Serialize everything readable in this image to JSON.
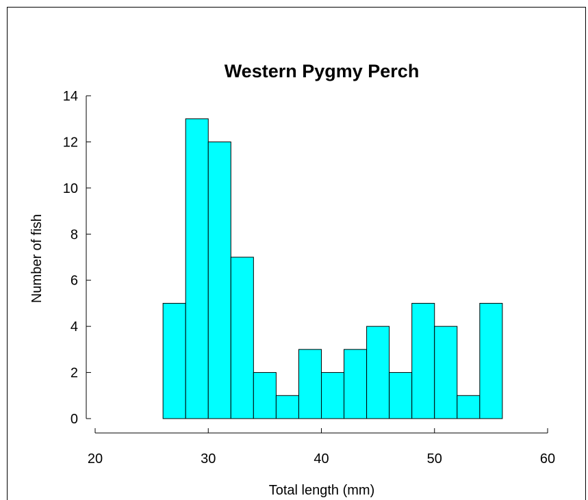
{
  "chart_data": {
    "type": "bar",
    "title": "Western Pygmy Perch",
    "xlabel": "Total length (mm)",
    "ylabel": "Number of fish",
    "xlim": [
      20,
      60
    ],
    "ylim": [
      0,
      14
    ],
    "xticks": [
      20,
      30,
      40,
      50,
      60
    ],
    "yticks": [
      0,
      2,
      4,
      6,
      8,
      10,
      12,
      14
    ],
    "bin_width": 2,
    "bins": [
      {
        "start": 26,
        "end": 28,
        "value": 5
      },
      {
        "start": 28,
        "end": 30,
        "value": 13
      },
      {
        "start": 30,
        "end": 32,
        "value": 12
      },
      {
        "start": 32,
        "end": 34,
        "value": 7
      },
      {
        "start": 34,
        "end": 36,
        "value": 2
      },
      {
        "start": 36,
        "end": 38,
        "value": 1
      },
      {
        "start": 38,
        "end": 40,
        "value": 3
      },
      {
        "start": 40,
        "end": 42,
        "value": 2
      },
      {
        "start": 42,
        "end": 44,
        "value": 3
      },
      {
        "start": 44,
        "end": 46,
        "value": 4
      },
      {
        "start": 46,
        "end": 48,
        "value": 2
      },
      {
        "start": 48,
        "end": 50,
        "value": 5
      },
      {
        "start": 50,
        "end": 52,
        "value": 4
      },
      {
        "start": 52,
        "end": 54,
        "value": 1
      },
      {
        "start": 54,
        "end": 56,
        "value": 5
      }
    ],
    "bar_color": "#00FFFF",
    "edge_color": "#000000",
    "grid": false,
    "legend": "none"
  }
}
